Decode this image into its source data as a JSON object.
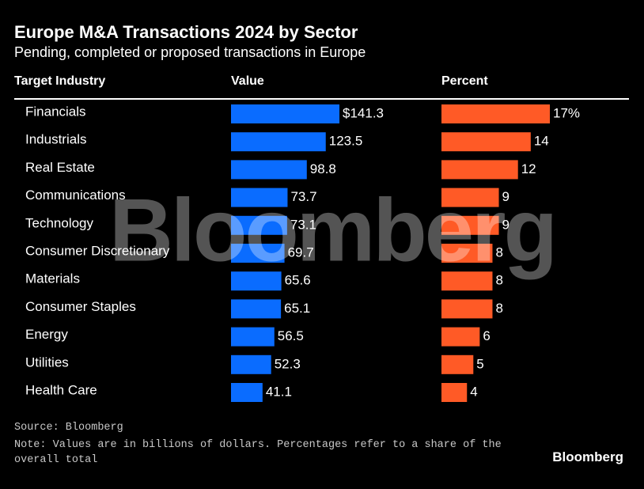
{
  "chart_data": {
    "type": "bar",
    "title": "Europe M&A Transactions 2024 by Sector",
    "subtitle": "Pending, completed or proposed transactions in Europe",
    "category_header": "Target Industry",
    "categories": [
      "Financials",
      "Industrials",
      "Real Estate",
      "Communications",
      "Technology",
      "Consumer Discretionary",
      "Materials",
      "Consumer Staples",
      "Energy",
      "Utilities",
      "Health Care"
    ],
    "series": [
      {
        "name": "Value",
        "color": "#0a6cff",
        "values": [
          141.3,
          123.5,
          98.8,
          73.7,
          73.1,
          69.7,
          65.6,
          65.1,
          56.5,
          52.3,
          41.1
        ],
        "value_labels": [
          "$141.3",
          "123.5",
          "98.8",
          "73.7",
          "73.1",
          "69.7",
          "65.6",
          "65.1",
          "56.5",
          "52.3",
          "41.1"
        ]
      },
      {
        "name": "Percent",
        "color": "#ff5a26",
        "values": [
          17,
          14,
          12,
          9,
          9,
          8,
          8,
          8,
          6,
          5,
          4
        ],
        "value_labels": [
          "17%",
          "14",
          "12",
          "9",
          "9",
          "8",
          "8",
          "8",
          "6",
          "5",
          "4"
        ]
      }
    ],
    "source": "Source: Bloomberg",
    "note": "Note: Values are in billions of dollars. Percentages refer to a share of the overall total",
    "watermark": "Bloomberg",
    "logo": "Bloomberg"
  }
}
